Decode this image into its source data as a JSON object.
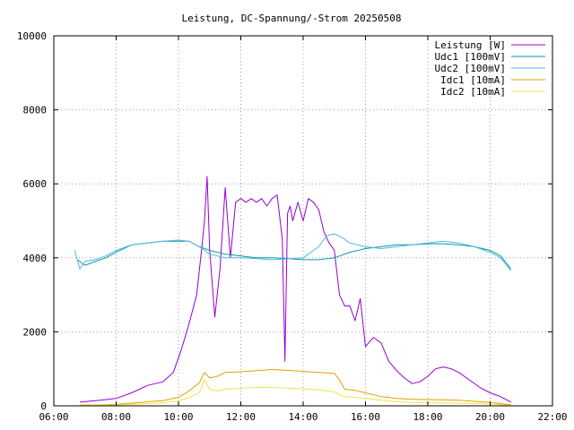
{
  "chart_data": {
    "type": "line",
    "title": "Leistung, DC-Spannung/-Strom 20250508",
    "xlabel": "",
    "ylabel": "",
    "xlim": [
      "06:00",
      "22:00"
    ],
    "ylim": [
      0,
      10000
    ],
    "x_ticks": [
      "06:00",
      "08:00",
      "10:00",
      "12:00",
      "14:00",
      "16:00",
      "18:00",
      "20:00",
      "22:00"
    ],
    "y_ticks": [
      "0",
      "2000",
      "4000",
      "6000",
      "8000",
      "10000"
    ],
    "grid": true,
    "legend_position": "top-right",
    "series": [
      {
        "name": "Leistung [W]",
        "color": "#9400d3",
        "x": [
          "06:50",
          "07:30",
          "08:00",
          "08:30",
          "09:00",
          "09:30",
          "09:50",
          "10:05",
          "10:20",
          "10:35",
          "10:45",
          "10:50",
          "10:55",
          "11:00",
          "11:10",
          "11:20",
          "11:30",
          "11:40",
          "11:50",
          "12:00",
          "12:10",
          "12:20",
          "12:30",
          "12:40",
          "12:50",
          "13:00",
          "13:10",
          "13:20",
          "13:25",
          "13:30",
          "13:35",
          "13:40",
          "13:50",
          "14:00",
          "14:10",
          "14:20",
          "14:30",
          "14:40",
          "14:50",
          "15:00",
          "15:10",
          "15:20",
          "15:30",
          "15:40",
          "15:50",
          "16:00",
          "16:15",
          "16:30",
          "16:45",
          "17:00",
          "17:15",
          "17:30",
          "17:45",
          "18:00",
          "18:15",
          "18:30",
          "18:45",
          "19:00",
          "19:20",
          "19:40",
          "20:00",
          "20:20",
          "20:40"
        ],
        "y": [
          100,
          150,
          200,
          350,
          550,
          650,
          900,
          1500,
          2200,
          3000,
          4300,
          5000,
          6200,
          4200,
          2400,
          3700,
          5900,
          4000,
          5500,
          5600,
          5500,
          5600,
          5500,
          5600,
          5400,
          5600,
          5700,
          4500,
          1200,
          5200,
          5400,
          5000,
          5500,
          5000,
          5600,
          5500,
          5300,
          4700,
          4400,
          4200,
          3000,
          2700,
          2700,
          2300,
          2900,
          1600,
          1850,
          1700,
          1200,
          950,
          750,
          600,
          650,
          800,
          1000,
          1050,
          1000,
          900,
          700,
          500,
          350,
          250,
          100
        ]
      },
      {
        "name": "Udc1 [100mV]",
        "color": "#009e9e",
        "x": [
          "06:45",
          "07:00",
          "07:20",
          "07:40",
          "08:00",
          "08:30",
          "09:00",
          "09:30",
          "10:00",
          "10:20",
          "10:40",
          "11:00",
          "11:30",
          "12:00",
          "12:30",
          "13:00",
          "13:30",
          "14:00",
          "14:30",
          "15:00",
          "15:30",
          "16:00",
          "16:30",
          "17:00",
          "17:30",
          "18:00",
          "18:30",
          "19:00",
          "19:30",
          "20:00",
          "20:20",
          "20:40"
        ],
        "y": [
          3950,
          3800,
          3900,
          4000,
          4150,
          4350,
          4400,
          4450,
          4450,
          4450,
          4300,
          4200,
          4100,
          4050,
          4000,
          4000,
          3980,
          3950,
          3950,
          4000,
          4150,
          4250,
          4300,
          4350,
          4350,
          4380,
          4380,
          4350,
          4300,
          4200,
          4050,
          3700
        ]
      },
      {
        "name": "Udc2 [100mV]",
        "color": "#56b4e9",
        "x": [
          "06:40",
          "06:50",
          "07:00",
          "07:20",
          "07:40",
          "08:00",
          "08:30",
          "09:00",
          "09:30",
          "10:00",
          "10:20",
          "10:40",
          "11:00",
          "11:30",
          "12:00",
          "12:30",
          "13:00",
          "13:30",
          "14:00",
          "14:30",
          "14:45",
          "15:00",
          "15:15",
          "15:30",
          "16:00",
          "16:30",
          "17:00",
          "17:30",
          "18:00",
          "18:30",
          "19:00",
          "19:30",
          "20:00",
          "20:20",
          "20:40"
        ],
        "y": [
          4200,
          3700,
          3900,
          3950,
          4050,
          4200,
          4350,
          4400,
          4450,
          4480,
          4450,
          4300,
          4100,
          4000,
          4000,
          3980,
          3950,
          3970,
          4000,
          4300,
          4600,
          4650,
          4550,
          4400,
          4300,
          4250,
          4300,
          4350,
          4400,
          4450,
          4400,
          4300,
          4150,
          4000,
          3650
        ]
      },
      {
        "name": "Idc1 [10mA]",
        "color": "#e69f00",
        "x": [
          "06:50",
          "07:30",
          "08:00",
          "08:30",
          "09:00",
          "09:30",
          "10:00",
          "10:20",
          "10:40",
          "10:50",
          "11:00",
          "11:15",
          "11:30",
          "12:00",
          "12:30",
          "13:00",
          "13:30",
          "14:00",
          "14:30",
          "15:00",
          "15:10",
          "15:20",
          "15:40",
          "16:00",
          "16:30",
          "17:00",
          "17:30",
          "18:00",
          "18:30",
          "19:00",
          "19:30",
          "20:00",
          "20:20",
          "20:40"
        ],
        "y": [
          20,
          25,
          40,
          70,
          110,
          140,
          230,
          400,
          620,
          900,
          750,
          800,
          900,
          920,
          950,
          980,
          960,
          930,
          900,
          880,
          700,
          450,
          420,
          350,
          250,
          200,
          180,
          170,
          160,
          150,
          120,
          90,
          60,
          30
        ]
      },
      {
        "name": "Idc2 [10mA]",
        "color": "#f0e442",
        "x": [
          "06:50",
          "07:30",
          "08:00",
          "08:30",
          "09:00",
          "09:30",
          "10:00",
          "10:20",
          "10:40",
          "10:50",
          "11:00",
          "11:15",
          "11:30",
          "12:00",
          "12:30",
          "13:00",
          "13:30",
          "14:00",
          "14:30",
          "15:00",
          "15:10",
          "15:20",
          "15:40",
          "16:00",
          "16:30",
          "17:00",
          "17:30",
          "18:00",
          "18:30",
          "19:00",
          "19:30",
          "20:00",
          "20:20",
          "20:40"
        ],
        "y": [
          10,
          15,
          25,
          40,
          60,
          80,
          130,
          220,
          350,
          700,
          450,
          400,
          450,
          480,
          500,
          500,
          480,
          460,
          430,
          380,
          300,
          250,
          230,
          200,
          150,
          110,
          90,
          80,
          80,
          70,
          60,
          50,
          30,
          15
        ]
      }
    ]
  }
}
